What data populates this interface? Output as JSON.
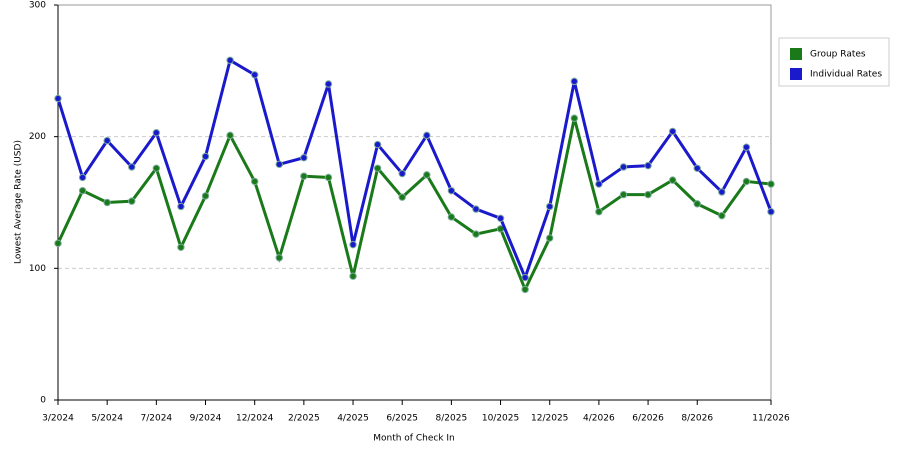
{
  "chart_data": {
    "type": "line",
    "x_label": "Month of Check In",
    "y_label": "Lowest Average Rate (USD)",
    "categories": [
      "3/2024",
      null,
      "5/2024",
      null,
      "7/2024",
      null,
      "9/2024",
      null,
      "12/2024",
      null,
      "2/2025",
      null,
      "4/2025",
      null,
      "6/2025",
      null,
      "8/2025",
      null,
      "10/2025",
      null,
      "12/2025",
      null,
      "4/2026",
      null,
      "6/2026",
      null,
      "8/2026",
      null,
      null,
      "11/2026"
    ],
    "series": [
      {
        "name": "Group Rates",
        "color": "#1a7a1a",
        "values": [
          119,
          159,
          150,
          151,
          176,
          116,
          155,
          201,
          166,
          108,
          170,
          169,
          94,
          176,
          154,
          171,
          139,
          126,
          130,
          84,
          123,
          214,
          143,
          156,
          156,
          167,
          149,
          140,
          166,
          164
        ]
      },
      {
        "name": "Individual Rates",
        "color": "#1a1acc",
        "values": [
          229,
          169,
          197,
          177,
          203,
          147,
          185,
          258,
          247,
          179,
          184,
          240,
          118,
          194,
          172,
          201,
          159,
          145,
          138,
          93,
          147,
          242,
          164,
          177,
          178,
          204,
          176,
          158,
          192,
          143
        ]
      }
    ],
    "ylim": [
      0,
      300
    ],
    "yticks": [
      0,
      100,
      200,
      300
    ],
    "grid": true
  }
}
